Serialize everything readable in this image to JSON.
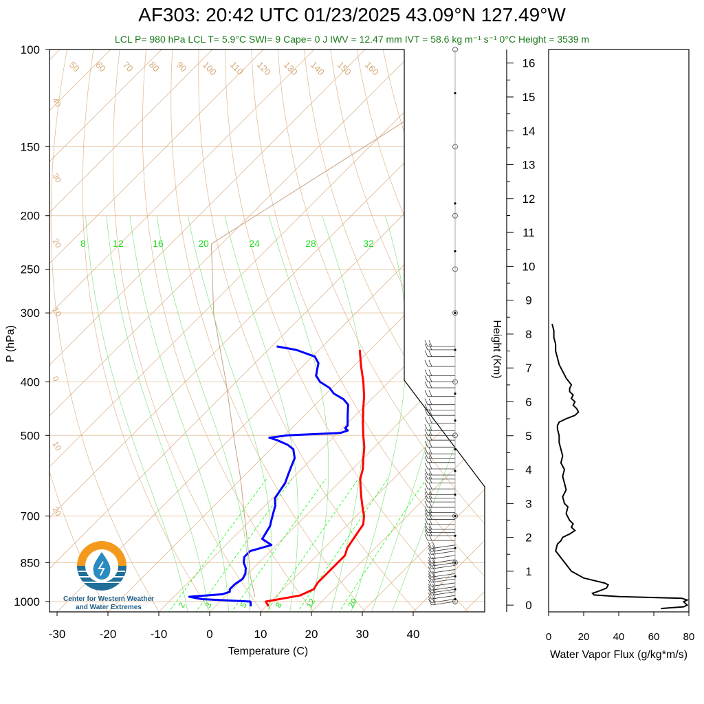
{
  "header": {
    "title": "AF303: 20:42 UTC 01/23/2025  43.09°N 127.49°W",
    "subtitle": "LCL P= 980 hPa  LCL T= 5.9°C  SWI= 9  Cape= 0 J  IWV = 12.47 mm  IVT = 58.6 kg m⁻¹ s⁻¹  0°C Height = 3539 m"
  },
  "logo": {
    "line1": "Center for Western Weather",
    "line2": "and Water Extremes"
  },
  "colors": {
    "temperature": "#ff0000",
    "dewpoint": "#0000ff",
    "isobar": "#e8c9a8",
    "dry_adiabat": "#d8a878",
    "mixing_ratio": "#00ff00",
    "subtitle": "#1a7a1a"
  },
  "chart_data": [
    {
      "type": "line",
      "title": "Skew-T",
      "xlabel": "Temperature (C)",
      "ylabel": "P (hPa)",
      "xlim": [
        -33,
        52
      ],
      "ylim": [
        1050,
        100
      ],
      "x_ticks": [
        -30,
        -20,
        -10,
        0,
        10,
        20,
        30,
        40
      ],
      "y_ticks": [
        1000,
        850,
        700,
        500,
        400,
        300,
        250,
        200,
        150,
        100
      ],
      "y_tick_labels": [
        "1000",
        "850",
        "700",
        "500",
        "400",
        "300",
        "250",
        "200",
        "150",
        "100"
      ],
      "isotherm_labels": [
        {
          "text": "30",
          "t": 30,
          "p": 165
        },
        {
          "text": "20",
          "t": 20,
          "p": 195
        },
        {
          "text": "10",
          "t": 10,
          "p": 260
        },
        {
          "text": "0",
          "t": 0,
          "p": 345
        },
        {
          "text": "10",
          "t": -10,
          "p": 440
        },
        {
          "text": "20",
          "t": -20,
          "p": 530
        },
        {
          "text": "30",
          "t": -30,
          "p": 610
        },
        {
          "text": "40",
          "t": -40,
          "p": 130
        },
        {
          "text": "30",
          "t": -30,
          "p": 180
        },
        {
          "text": "20",
          "t": -20,
          "p": 230
        },
        {
          "text": "10",
          "t": -10,
          "p": 300
        },
        {
          "text": "0",
          "t": 0,
          "p": 390
        },
        {
          "text": "10",
          "t": -10,
          "p": 510
        },
        {
          "text": "20",
          "t": -20,
          "p": 690
        }
      ],
      "theta_labels": [
        "50",
        "60",
        "70",
        "80",
        "90",
        "100",
        "110",
        "120",
        "130",
        "140",
        "150",
        "160"
      ],
      "mixing_ratio_labels": [
        "8",
        "12",
        "16",
        "20",
        "24",
        "28",
        "32"
      ],
      "mixing_ratio_bottom_labels": [
        "2",
        "3",
        "5",
        "8",
        "12",
        "20"
      ],
      "series": [
        {
          "name": "Temperature",
          "color": "#ff0000",
          "p": [
            1020,
            1000,
            975,
            950,
            925,
            900,
            875,
            850,
            825,
            800,
            775,
            750,
            725,
            700,
            675,
            650,
            625,
            600,
            575,
            550,
            525,
            500,
            475,
            450,
            425,
            400,
            375,
            350
          ],
          "t": [
            10.5,
            9,
            14.5,
            16,
            15.5,
            15.5,
            15.5,
            15.5,
            15.5,
            14.5,
            14,
            13.5,
            13,
            11.5,
            9.5,
            7.5,
            5.5,
            3.5,
            2,
            0,
            -2,
            -4.5,
            -7,
            -9.5,
            -12,
            -15,
            -18.5,
            -22
          ]
        },
        {
          "name": "Dewpoint",
          "color": "#0000ff",
          "p": [
            1020,
            1000,
            990,
            980,
            970,
            960,
            950,
            930,
            910,
            890,
            870,
            850,
            830,
            810,
            790,
            770,
            750,
            730,
            710,
            690,
            670,
            650,
            630,
            610,
            590,
            570,
            550,
            530,
            520,
            510,
            505,
            500,
            495,
            490,
            485,
            480,
            470,
            460,
            450,
            440,
            430,
            420,
            410,
            400,
            390,
            380,
            370,
            360,
            350,
            345
          ],
          "t": [
            7,
            6,
            -4,
            -7,
            -1,
            0,
            -0.5,
            -0.5,
            0,
            -0.5,
            -1.5,
            -3,
            -4,
            -4,
            -1,
            -4,
            -4.5,
            -5,
            -6,
            -7,
            -8,
            -9.5,
            -10,
            -10.5,
            -11.5,
            -12.5,
            -13.5,
            -15.5,
            -17.5,
            -20.5,
            -22.5,
            -19.5,
            -9.5,
            -8.5,
            -9.5,
            -9.5,
            -10.5,
            -11.5,
            -12.5,
            -13.5,
            -15.5,
            -18.5,
            -20.5,
            -23.5,
            -25.5,
            -26.5,
            -27.5,
            -29.5,
            -34.5,
            -39
          ]
        },
        {
          "name": "Parcel",
          "color": "#c8a080",
          "p": [
            980,
            900,
            800,
            700,
            600,
            500,
            400,
            300,
            225,
            100
          ],
          "t": [
            5.9,
            1,
            -5,
            -12,
            -20,
            -30,
            -42,
            -58,
            -72,
            -50
          ]
        }
      ],
      "wind_levels_hPa": [
        1000,
        990,
        975,
        960,
        950,
        940,
        925,
        910,
        900,
        890,
        875,
        860,
        850,
        840,
        825,
        810,
        800,
        790,
        775,
        760,
        750,
        740,
        725,
        710,
        700,
        690,
        675,
        660,
        650,
        640,
        625,
        610,
        600,
        590,
        575,
        560,
        550,
        540,
        525,
        510,
        500,
        490,
        475,
        460,
        450,
        440,
        425,
        410,
        400,
        390,
        375,
        360,
        350,
        345
      ]
    },
    {
      "type": "line",
      "xlabel": "Water Vapor Flux (g/kg*m/s)",
      "ylabel": "Height (Km)",
      "xlim": [
        0,
        80
      ],
      "ylim": [
        -0.2,
        16.4
      ],
      "x_ticks": [
        0,
        20,
        40,
        60,
        80
      ],
      "y_ticks": [
        0,
        1,
        2,
        3,
        4,
        5,
        6,
        7,
        8,
        9,
        10,
        11,
        12,
        13,
        14,
        15,
        16
      ],
      "series": [
        {
          "name": "Water Vapor Flux",
          "color": "#000000",
          "height": [
            -0.1,
            -0.05,
            0.0,
            0.05,
            0.1,
            0.15,
            0.2,
            0.25,
            0.3,
            0.35,
            0.4,
            0.5,
            0.6,
            0.65,
            0.7,
            0.8,
            1.0,
            1.2,
            1.4,
            1.6,
            1.8,
            1.9,
            2.0,
            2.1,
            2.2,
            2.3,
            2.4,
            2.5,
            2.7,
            2.9,
            3.0,
            3.2,
            3.4,
            3.6,
            3.8,
            4.0,
            4.2,
            4.4,
            4.6,
            4.8,
            5.0,
            5.2,
            5.3,
            5.4,
            5.5,
            5.6,
            5.7,
            5.8,
            5.9,
            6.0,
            6.1,
            6.2,
            6.3,
            6.4,
            6.5,
            6.7,
            6.9,
            7.1,
            7.3,
            7.5,
            7.7,
            7.9,
            8.1,
            8.3
          ],
          "flux": [
            64,
            77,
            79,
            78,
            77,
            79,
            76,
            40,
            26,
            25,
            28,
            33,
            34,
            32,
            28,
            20,
            13,
            10,
            7,
            4,
            5,
            7,
            8,
            12,
            15,
            13,
            14,
            12,
            10,
            11,
            9,
            8,
            10,
            9,
            8,
            9,
            7,
            8,
            7,
            6,
            6,
            5,
            5,
            6,
            10,
            15,
            17,
            16,
            14,
            15,
            13,
            14,
            12,
            12,
            13,
            10,
            8,
            6,
            5,
            4,
            4,
            3,
            3,
            2
          ]
        }
      ]
    }
  ]
}
